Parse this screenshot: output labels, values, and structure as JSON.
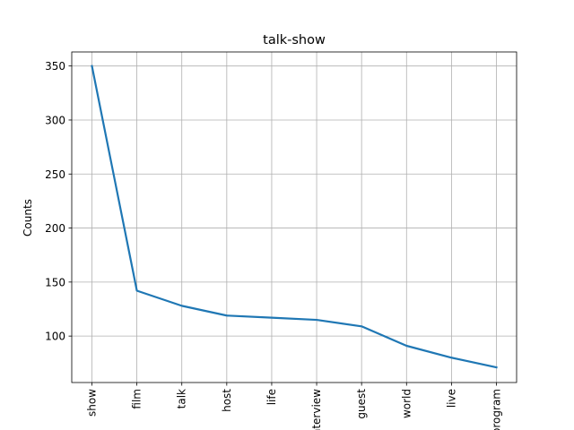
{
  "chart_data": {
    "type": "line",
    "title": "talk-show",
    "xlabel": "",
    "ylabel": "Counts",
    "categories": [
      "show",
      "film",
      "talk",
      "host",
      "life",
      "interview",
      "guest",
      "world",
      "live",
      "program"
    ],
    "series": [
      {
        "values": [
          350,
          142,
          128,
          119,
          117,
          115,
          109,
          91,
          80,
          71
        ]
      }
    ],
    "ylim": [
      57,
      363
    ],
    "yticks": [
      100,
      150,
      200,
      250,
      300,
      350
    ],
    "grid": true,
    "line_color": "#1f77b4"
  }
}
